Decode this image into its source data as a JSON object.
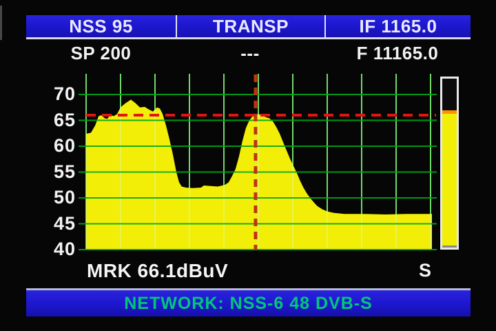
{
  "header": {
    "satellite": "NSS 95",
    "transponder_label": "TRANSP",
    "if_frequency": "IF 1165.0",
    "span": "SP 200",
    "transponder_value": "---",
    "frequency": "F 11165.0"
  },
  "chart_data": {
    "type": "area",
    "title": "",
    "xlabel": "",
    "ylabel": "",
    "x_center_mhz": 1165.0,
    "x_span_mhz": 200,
    "x_range_mhz": [
      1065,
      1265
    ],
    "ylim": [
      40,
      73.5
    ],
    "yticks": [
      70,
      65,
      60,
      55,
      50,
      45,
      40
    ],
    "grid": {
      "horizontal_at_db": [
        70,
        65,
        60,
        55,
        50,
        45,
        40
      ],
      "vertical_count": 11
    },
    "legend_position": "none",
    "marker": {
      "freq_mhz": 1163.0,
      "level_db": 66.1,
      "threshold_line_db": 66.0,
      "readout": "MRK 66.1dBuV"
    },
    "series": [
      {
        "name": "spectrum_level_dbuv",
        "fill": true,
        "points_mhz_db": [
          [
            1065.0,
            62.4
          ],
          [
            1067.8,
            62.6
          ],
          [
            1070.2,
            64.0
          ],
          [
            1072.2,
            65.8
          ],
          [
            1073.8,
            66.0
          ],
          [
            1075.8,
            65.4
          ],
          [
            1077.3,
            65.3
          ],
          [
            1078.9,
            66.1
          ],
          [
            1080.9,
            65.8
          ],
          [
            1082.9,
            66.2
          ],
          [
            1084.9,
            67.5
          ],
          [
            1087.7,
            68.3
          ],
          [
            1090.9,
            69.0
          ],
          [
            1093.3,
            68.4
          ],
          [
            1096.1,
            67.5
          ],
          [
            1098.9,
            67.6
          ],
          [
            1101.3,
            67.1
          ],
          [
            1103.6,
            66.7
          ],
          [
            1106.0,
            67.5
          ],
          [
            1107.6,
            67.3
          ],
          [
            1109.2,
            66.3
          ],
          [
            1111.2,
            64.0
          ],
          [
            1113.1,
            61.5
          ],
          [
            1115.1,
            58.5
          ],
          [
            1117.2,
            55.0
          ],
          [
            1118.8,
            53.0
          ],
          [
            1120.3,
            52.2
          ],
          [
            1122.7,
            52.0
          ],
          [
            1126.7,
            51.9
          ],
          [
            1131.5,
            52.0
          ],
          [
            1133.1,
            52.4
          ],
          [
            1137.1,
            52.3
          ],
          [
            1141.1,
            52.2
          ],
          [
            1145.1,
            52.5
          ],
          [
            1147.4,
            53.0
          ],
          [
            1149.4,
            54.2
          ],
          [
            1151.4,
            55.6
          ],
          [
            1153.4,
            58.0
          ],
          [
            1155.4,
            61.0
          ],
          [
            1157.4,
            63.5
          ],
          [
            1159.4,
            65.0
          ],
          [
            1161.0,
            65.7
          ],
          [
            1163.0,
            66.1
          ],
          [
            1165.0,
            66.2
          ],
          [
            1167.0,
            65.9
          ],
          [
            1169.0,
            65.6
          ],
          [
            1171.0,
            65.4
          ],
          [
            1173.0,
            64.8
          ],
          [
            1175.0,
            63.7
          ],
          [
            1177.0,
            62.4
          ],
          [
            1178.9,
            60.8
          ],
          [
            1180.9,
            59.2
          ],
          [
            1182.9,
            57.6
          ],
          [
            1184.9,
            56.2
          ],
          [
            1186.9,
            54.8
          ],
          [
            1188.8,
            53.3
          ],
          [
            1190.8,
            51.9
          ],
          [
            1192.8,
            50.8
          ],
          [
            1194.8,
            49.9
          ],
          [
            1196.8,
            49.1
          ],
          [
            1198.8,
            48.4
          ],
          [
            1201.6,
            47.8
          ],
          [
            1204.4,
            47.4
          ],
          [
            1208.4,
            47.1
          ],
          [
            1214.4,
            46.9
          ],
          [
            1226.3,
            46.9
          ],
          [
            1238.2,
            46.8
          ],
          [
            1250.2,
            46.9
          ],
          [
            1265.0,
            46.9
          ]
        ]
      }
    ]
  },
  "footer": {
    "marker_readout": "MRK 66.1dBuV",
    "signal_bar_label": "S"
  },
  "status_bar": {
    "text": "NETWORK: NSS-6  48 DVB-S"
  },
  "signal_bar": {
    "fill_percent": 78,
    "fill_color": "#f2ee08",
    "peak_color": "#ff9200"
  },
  "colors": {
    "bar_blue": "#1d18cf",
    "header_text": "#e9e9ff",
    "white_text": "#f2f2f2",
    "trace_yellow": "#f2ee08",
    "grid_green": "#00a818",
    "grid_green_bright": "#35c035",
    "marker_red": "#e21414",
    "marker_vertical_red": "#bf3410",
    "network_text_green": "#00c878",
    "bar_peak_orange": "#ff9200"
  }
}
